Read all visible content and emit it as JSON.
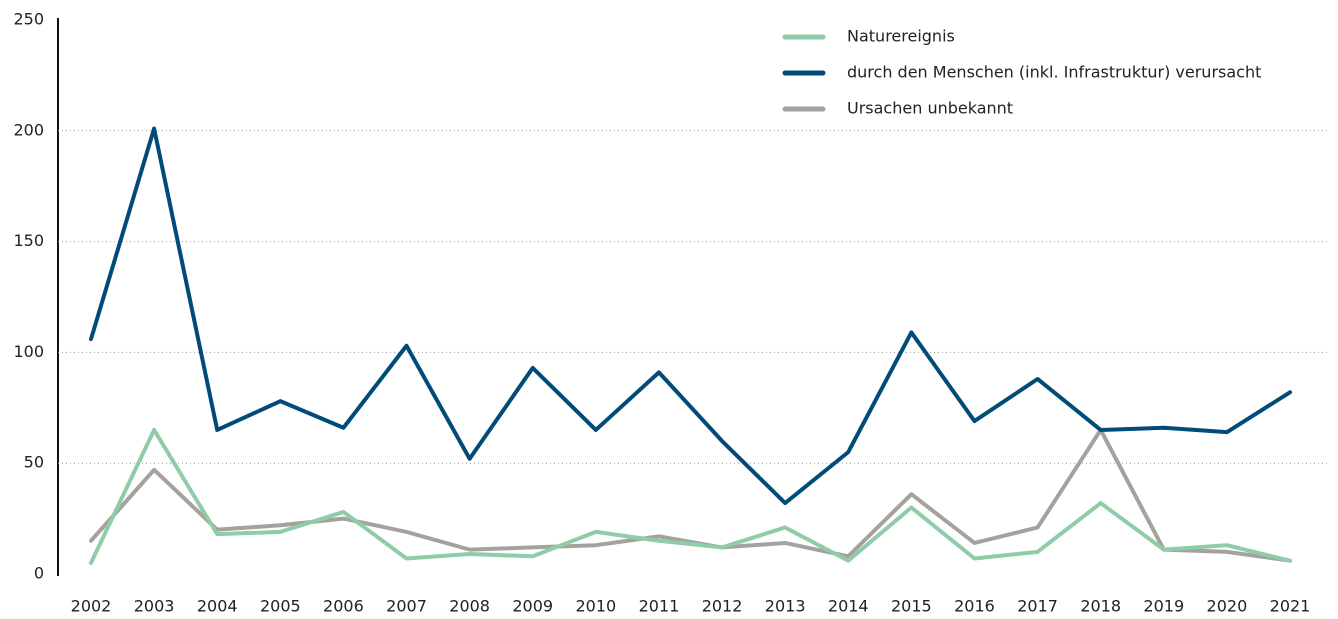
{
  "chart_data": {
    "type": "line",
    "categories": [
      "2002",
      "2003",
      "2004",
      "2005",
      "2006",
      "2007",
      "2008",
      "2009",
      "2010",
      "2011",
      "2012",
      "2013",
      "2014",
      "2015",
      "2016",
      "2017",
      "2018",
      "2019",
      "2020",
      "2021"
    ],
    "series": [
      {
        "name": "Naturereignis",
        "color": "#8fcca8",
        "values": [
          5,
          65,
          18,
          19,
          28,
          7,
          9,
          8,
          19,
          15,
          12,
          21,
          6,
          30,
          7,
          10,
          32,
          11,
          13,
          6
        ]
      },
      {
        "name": "durch den Menschen (inkl. Infrastruktur) verursacht",
        "color": "#004b78",
        "values": [
          106,
          201,
          65,
          78,
          66,
          103,
          52,
          93,
          65,
          91,
          60,
          32,
          55,
          109,
          69,
          88,
          65,
          66,
          64,
          82
        ]
      },
      {
        "name": "Ursachen unbekannt",
        "color": "#a6a19c",
        "values": [
          15,
          47,
          20,
          22,
          25,
          19,
          11,
          12,
          13,
          17,
          12,
          14,
          8,
          36,
          14,
          21,
          65,
          11,
          10,
          6
        ]
      }
    ],
    "ylim": [
      0,
      250
    ],
    "yticks": [
      0,
      50,
      100,
      150,
      200,
      250
    ],
    "grid": true,
    "legend": "top-right"
  }
}
